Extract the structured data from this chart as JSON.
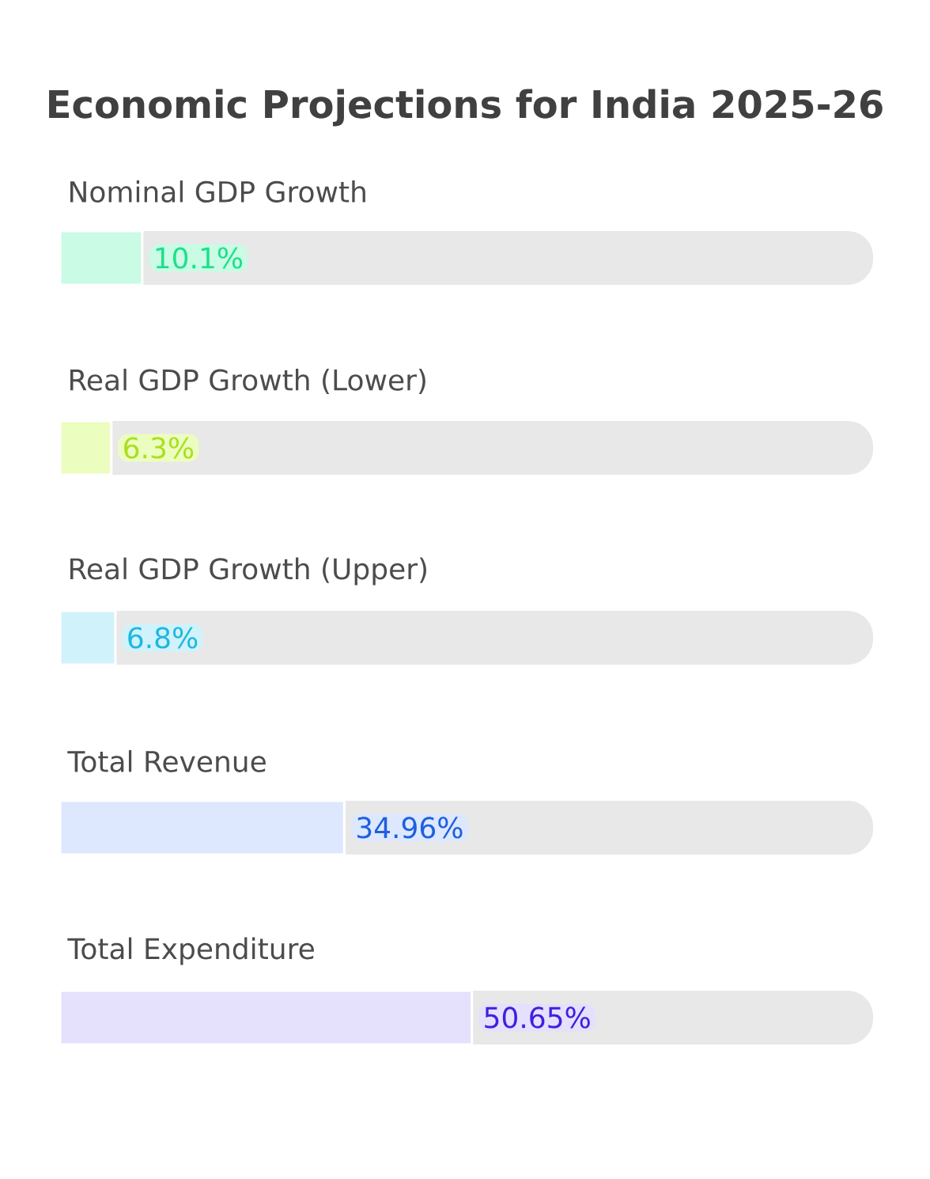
{
  "chart_data": {
    "type": "bar",
    "orientation": "horizontal",
    "title": "Economic Projections for India 2025-26",
    "categories": [
      "Nominal GDP Growth",
      "Real GDP Growth (Lower)",
      "Real GDP Growth (Upper)",
      "Total Revenue",
      "Total Expenditure"
    ],
    "values": [
      10.1,
      6.3,
      6.8,
      34.96,
      50.65
    ],
    "value_labels": [
      "10.1%",
      "6.3%",
      "6.8%",
      "34.96%",
      "50.65%"
    ],
    "colors": [
      "#c9fbe5",
      "#ecfdc0",
      "#d0f2fb",
      "#dde8fe",
      "#e5e0fc"
    ],
    "xlim": [
      0,
      100
    ]
  }
}
